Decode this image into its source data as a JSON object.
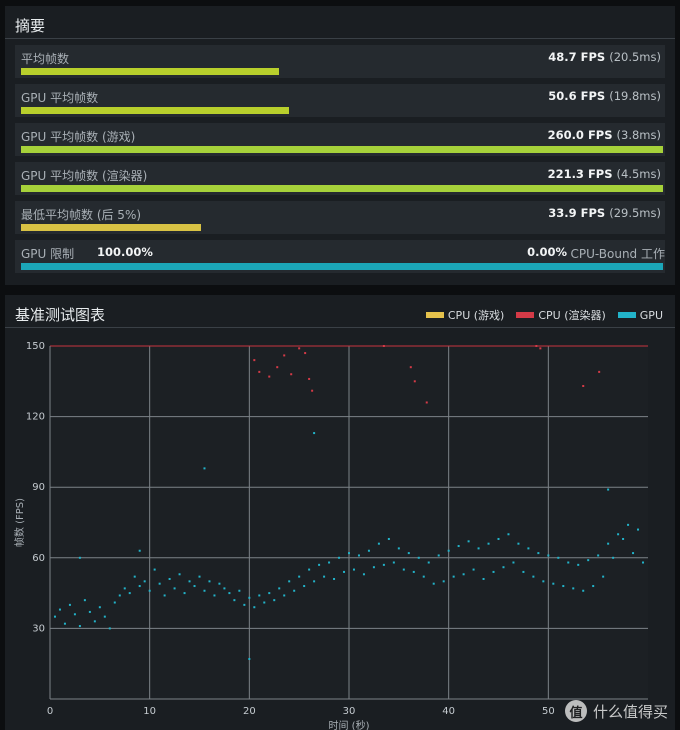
{
  "summary": {
    "title": "摘要",
    "rows": [
      {
        "label": "平均帧数",
        "fps": "48.7 FPS",
        "ms": "(20.5ms)",
        "fill": 0.402,
        "color": "#b8cf2c"
      },
      {
        "label": "GPU 平均帧数",
        "fps": "50.6 FPS",
        "ms": "(19.8ms)",
        "fill": 0.418,
        "color": "#b8cf2c"
      },
      {
        "label": "GPU 平均帧数 (游戏)",
        "fps": "260.0 FPS",
        "ms": "(3.8ms)",
        "fill": 1.0,
        "color": "#a6d13a"
      },
      {
        "label": "GPU 平均帧数 (渲染器)",
        "fps": "221.3 FPS",
        "ms": "(4.5ms)",
        "fill": 1.0,
        "color": "#a6d13a"
      },
      {
        "label": "最低平均帧数 (后 5%)",
        "fps": "33.9 FPS",
        "ms": "(29.5ms)",
        "fill": 0.281,
        "color": "#d8c244"
      }
    ],
    "bound": {
      "label": "GPU 限制",
      "gpu_pct": "100.00%",
      "cpu_pct": "0.00%",
      "cpu_label": "CPU-Bound 工作",
      "fill": 1.0,
      "color": "#1ba6b8"
    }
  },
  "chart_panel": {
    "title": "基准测试图表",
    "legend": [
      {
        "name": "CPU (游戏)",
        "color": "#e5c24c"
      },
      {
        "name": "CPU (渲染器)",
        "color": "#d43a47"
      },
      {
        "name": "GPU",
        "color": "#22b3c9"
      }
    ]
  },
  "chart_data": {
    "type": "scatter",
    "xlabel": "时间 (秒)",
    "ylabel": "帧数 (FPS)",
    "xlim": [
      0,
      60
    ],
    "ylim": [
      0,
      150
    ],
    "xticks": [
      0,
      10,
      20,
      30,
      40,
      50
    ],
    "yticks": [
      30,
      60,
      90,
      120,
      150
    ],
    "grid": true,
    "legend_position": "top-right",
    "series": [
      {
        "name": "GPU",
        "color": "#22b3c9",
        "points": [
          [
            0.5,
            35
          ],
          [
            1,
            38
          ],
          [
            1.5,
            32
          ],
          [
            2,
            40
          ],
          [
            2.5,
            36
          ],
          [
            3,
            31
          ],
          [
            3.5,
            42
          ],
          [
            4,
            37
          ],
          [
            4.5,
            33
          ],
          [
            5,
            39
          ],
          [
            5.5,
            35
          ],
          [
            6,
            30
          ],
          [
            6.5,
            41
          ],
          [
            7,
            44
          ],
          [
            7.5,
            47
          ],
          [
            8,
            45
          ],
          [
            8.5,
            52
          ],
          [
            9,
            48
          ],
          [
            9.5,
            50
          ],
          [
            10,
            46
          ],
          [
            10.5,
            55
          ],
          [
            11,
            49
          ],
          [
            11.5,
            44
          ],
          [
            12,
            51
          ],
          [
            12.5,
            47
          ],
          [
            13,
            53
          ],
          [
            13.5,
            45
          ],
          [
            14,
            50
          ],
          [
            14.5,
            48
          ],
          [
            15,
            52
          ],
          [
            15.5,
            46
          ],
          [
            16,
            50
          ],
          [
            16.5,
            44
          ],
          [
            17,
            49
          ],
          [
            17.5,
            47
          ],
          [
            18,
            45
          ],
          [
            18.5,
            42
          ],
          [
            19,
            46
          ],
          [
            19.5,
            40
          ],
          [
            20,
            43
          ],
          [
            20.5,
            39
          ],
          [
            21,
            44
          ],
          [
            21.5,
            41
          ],
          [
            22,
            45
          ],
          [
            22.5,
            42
          ],
          [
            23,
            47
          ],
          [
            23.5,
            44
          ],
          [
            24,
            50
          ],
          [
            24.5,
            46
          ],
          [
            25,
            52
          ],
          [
            25.5,
            48
          ],
          [
            26,
            55
          ],
          [
            26.5,
            50
          ],
          [
            27,
            57
          ],
          [
            27.5,
            52
          ],
          [
            28,
            58
          ],
          [
            28.5,
            51
          ],
          [
            29,
            60
          ],
          [
            29.5,
            54
          ],
          [
            30,
            62
          ],
          [
            30.5,
            55
          ],
          [
            31,
            61
          ],
          [
            31.5,
            53
          ],
          [
            32,
            63
          ],
          [
            32.5,
            56
          ],
          [
            33,
            66
          ],
          [
            33.5,
            57
          ],
          [
            34,
            68
          ],
          [
            34.5,
            58
          ],
          [
            35,
            64
          ],
          [
            35.5,
            55
          ],
          [
            36,
            62
          ],
          [
            36.5,
            54
          ],
          [
            37,
            60
          ],
          [
            37.5,
            52
          ],
          [
            38,
            58
          ],
          [
            38.5,
            49
          ],
          [
            39,
            61
          ],
          [
            39.5,
            50
          ],
          [
            40,
            63
          ],
          [
            40.5,
            52
          ],
          [
            41,
            65
          ],
          [
            41.5,
            53
          ],
          [
            42,
            67
          ],
          [
            42.5,
            55
          ],
          [
            43,
            64
          ],
          [
            43.5,
            51
          ],
          [
            44,
            66
          ],
          [
            44.5,
            54
          ],
          [
            45,
            68
          ],
          [
            45.5,
            56
          ],
          [
            46,
            70
          ],
          [
            46.5,
            58
          ],
          [
            47,
            66
          ],
          [
            47.5,
            54
          ],
          [
            48,
            64
          ],
          [
            48.5,
            52
          ],
          [
            49,
            62
          ],
          [
            49.5,
            50
          ],
          [
            50,
            61
          ],
          [
            50.5,
            49
          ],
          [
            51,
            60
          ],
          [
            51.5,
            48
          ],
          [
            52,
            58
          ],
          [
            52.5,
            47
          ],
          [
            53,
            57
          ],
          [
            53.5,
            46
          ],
          [
            54,
            59
          ],
          [
            54.5,
            48
          ],
          [
            55,
            61
          ],
          [
            55.5,
            52
          ],
          [
            56,
            66
          ],
          [
            56.5,
            60
          ],
          [
            57,
            70
          ],
          [
            57.5,
            68
          ],
          [
            58,
            74
          ],
          [
            58.5,
            62
          ],
          [
            59,
            72
          ],
          [
            59.5,
            58
          ],
          [
            20,
            17
          ],
          [
            15.5,
            98
          ],
          [
            26.5,
            113
          ],
          [
            56,
            89
          ],
          [
            3,
            60
          ],
          [
            9,
            63
          ]
        ]
      },
      {
        "name": "CPU (渲染器)",
        "color": "#d43a47",
        "points": [
          [
            20.5,
            144
          ],
          [
            21,
            139
          ],
          [
            22,
            137
          ],
          [
            22.8,
            141
          ],
          [
            23.5,
            146
          ],
          [
            24.2,
            138
          ],
          [
            25,
            149
          ],
          [
            25.6,
            147
          ],
          [
            26,
            136
          ],
          [
            26.3,
            131
          ],
          [
            33.5,
            150
          ],
          [
            36.2,
            141
          ],
          [
            36.6,
            135
          ],
          [
            37.8,
            126
          ],
          [
            48.8,
            150
          ],
          [
            49.2,
            149
          ],
          [
            53.5,
            133
          ],
          [
            55.1,
            139
          ]
        ]
      }
    ]
  }
}
